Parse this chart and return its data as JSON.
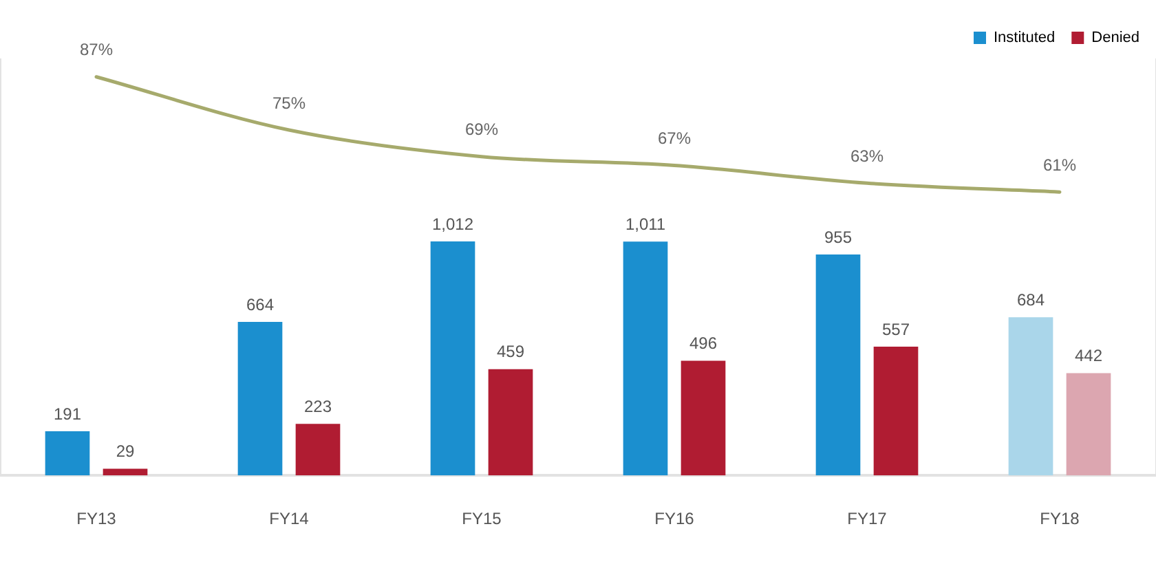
{
  "chart_data": {
    "type": "bar",
    "categories": [
      "FY13",
      "FY14",
      "FY15",
      "FY16",
      "FY17",
      "FY18"
    ],
    "series": [
      {
        "name": "Instituted",
        "color": "#1b8fcf",
        "colors": [
          "#1b8fcf",
          "#1b8fcf",
          "#1b8fcf",
          "#1b8fcf",
          "#1b8fcf",
          "#aad6ea"
        ],
        "values": [
          191,
          664,
          1012,
          1011,
          955,
          684
        ],
        "value_labels": [
          "191",
          "664",
          "1,012",
          "1,011",
          "955",
          "684"
        ]
      },
      {
        "name": "Denied",
        "color": "#b01c32",
        "colors": [
          "#b01c32",
          "#b01c32",
          "#b01c32",
          "#b01c32",
          "#b01c32",
          "#dca6b0"
        ],
        "values": [
          29,
          223,
          459,
          496,
          557,
          442
        ],
        "value_labels": [
          "29",
          "223",
          "459",
          "496",
          "557",
          "442"
        ]
      },
      {
        "type": "line",
        "axis": "y2",
        "color": "#a6aa6c",
        "values": [
          87,
          75,
          69,
          67,
          63,
          61
        ],
        "value_labels": [
          "87%",
          "75%",
          "69%",
          "67%",
          "63%",
          "61%"
        ]
      }
    ],
    "ylim": [
      0,
      1800
    ],
    "y2lim": [
      -3,
      91
    ],
    "tick_labels": "x",
    "legend": "top right"
  }
}
